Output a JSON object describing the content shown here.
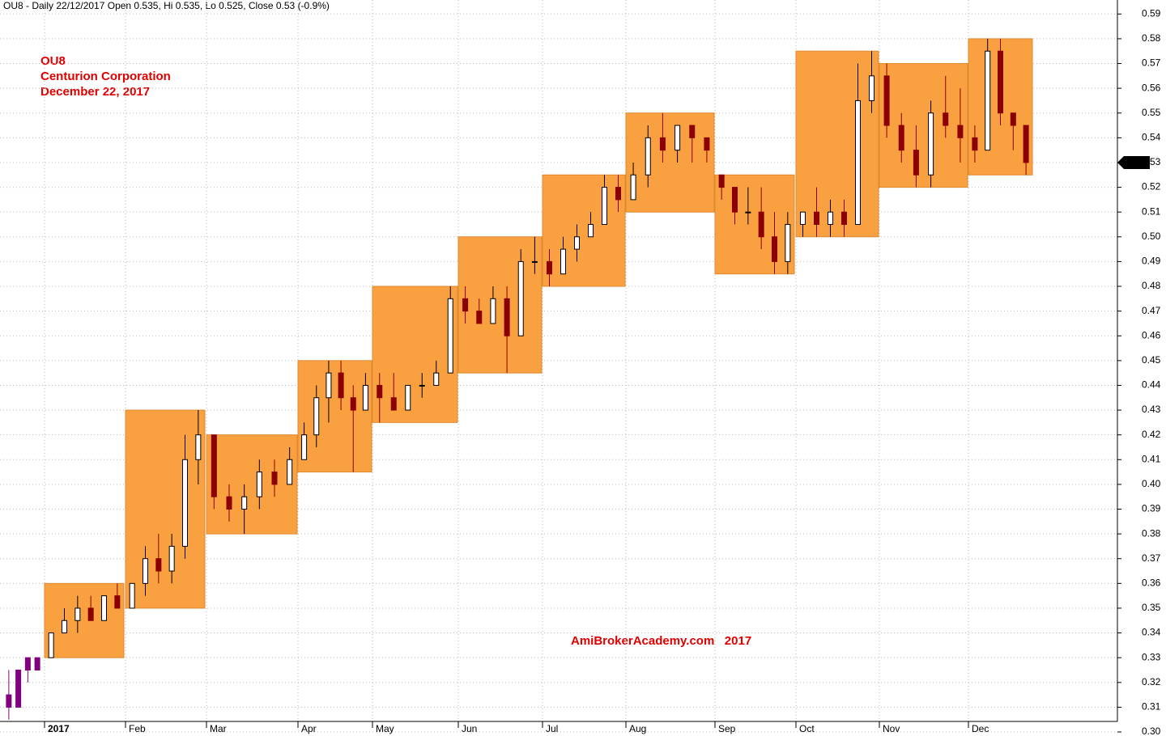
{
  "chart_data": {
    "type": "candlestick",
    "title": "OU8 - Daily 22/12/2017 Open 0.535, Hi 0.535, Lo 0.525, Close 0.53 (-0.9%)",
    "annotations": [
      "OU8",
      "Centurion Corporation",
      "December 22, 2017"
    ],
    "watermark": "AmiBrokerAcademy.com   2017",
    "ylim": [
      0.3,
      0.595
    ],
    "yticks": [
      {
        "value": 0.3,
        "label": "0.30"
      },
      {
        "value": 0.31,
        "label": "0.31"
      },
      {
        "value": 0.32,
        "label": "0.32"
      },
      {
        "value": 0.33,
        "label": "0.33"
      },
      {
        "value": 0.34,
        "label": "0.34"
      },
      {
        "value": 0.35,
        "label": "0.35"
      },
      {
        "value": 0.36,
        "label": "0.36"
      },
      {
        "value": 0.37,
        "label": "0.37"
      },
      {
        "value": 0.38,
        "label": "0.38"
      },
      {
        "value": 0.39,
        "label": "0.39"
      },
      {
        "value": 0.4,
        "label": "0.40"
      },
      {
        "value": 0.41,
        "label": "0.41"
      },
      {
        "value": 0.42,
        "label": "0.42"
      },
      {
        "value": 0.43,
        "label": "0.43"
      },
      {
        "value": 0.44,
        "label": "0.44"
      },
      {
        "value": 0.45,
        "label": "0.45"
      },
      {
        "value": 0.46,
        "label": "0.46"
      },
      {
        "value": 0.47,
        "label": "0.47"
      },
      {
        "value": 0.48,
        "label": "0.48"
      },
      {
        "value": 0.49,
        "label": "0.49"
      },
      {
        "value": 0.5,
        "label": "0.50"
      },
      {
        "value": 0.51,
        "label": "0.51"
      },
      {
        "value": 0.52,
        "label": "0.52"
      },
      {
        "value": 0.53,
        "label": "0.53"
      },
      {
        "value": 0.54,
        "label": "0.54"
      },
      {
        "value": 0.55,
        "label": "0.55"
      },
      {
        "value": 0.56,
        "label": "0.56"
      },
      {
        "value": 0.57,
        "label": "0.57"
      },
      {
        "value": 0.58,
        "label": "0.58"
      },
      {
        "value": 0.59,
        "label": "0.59"
      }
    ],
    "last": {
      "value": 0.53,
      "label": "0.53"
    },
    "box_color": "#f9a040",
    "up_color": "#ffffff",
    "down_color": "#8b0000",
    "pre_color": "#800080",
    "months": [
      {
        "label": null,
        "candles": [
          [
            0.315,
            0.325,
            0.305,
            0.31
          ],
          [
            0.31,
            0.325,
            0.31,
            0.325
          ],
          [
            0.325,
            0.33,
            0.32,
            0.33
          ],
          [
            0.33,
            0.33,
            0.325,
            0.325
          ]
        ]
      },
      {
        "label": "2017",
        "low": 0.33,
        "high": 0.36,
        "candles": [
          [
            0.33,
            0.34,
            0.33,
            0.34
          ],
          [
            0.34,
            0.35,
            0.34,
            0.345
          ],
          [
            0.345,
            0.355,
            0.34,
            0.35
          ],
          [
            0.35,
            0.355,
            0.345,
            0.345
          ],
          [
            0.345,
            0.355,
            0.345,
            0.355
          ],
          [
            0.355,
            0.36,
            0.35,
            0.35
          ]
        ]
      },
      {
        "label": "Feb",
        "low": 0.35,
        "high": 0.43,
        "candles": [
          [
            0.35,
            0.36,
            0.35,
            0.36
          ],
          [
            0.36,
            0.375,
            0.355,
            0.37
          ],
          [
            0.37,
            0.38,
            0.36,
            0.365
          ],
          [
            0.365,
            0.38,
            0.36,
            0.375
          ],
          [
            0.375,
            0.42,
            0.37,
            0.41
          ],
          [
            0.41,
            0.43,
            0.4,
            0.42
          ]
        ]
      },
      {
        "label": "Mar",
        "low": 0.38,
        "high": 0.42,
        "candles": [
          [
            0.42,
            0.42,
            0.39,
            0.395
          ],
          [
            0.395,
            0.4,
            0.385,
            0.39
          ],
          [
            0.39,
            0.4,
            0.38,
            0.395
          ],
          [
            0.395,
            0.41,
            0.39,
            0.405
          ],
          [
            0.405,
            0.41,
            0.395,
            0.4
          ],
          [
            0.4,
            0.415,
            0.4,
            0.41
          ]
        ]
      },
      {
        "label": "Apr",
        "low": 0.405,
        "high": 0.45,
        "candles": [
          [
            0.41,
            0.425,
            0.41,
            0.42
          ],
          [
            0.42,
            0.44,
            0.415,
            0.435
          ],
          [
            0.435,
            0.45,
            0.425,
            0.445
          ],
          [
            0.445,
            0.45,
            0.43,
            0.435
          ],
          [
            0.435,
            0.44,
            0.405,
            0.43
          ],
          [
            0.43,
            0.445,
            0.43,
            0.44
          ]
        ]
      },
      {
        "label": "May",
        "low": 0.425,
        "high": 0.48,
        "candles": [
          [
            0.44,
            0.445,
            0.425,
            0.435
          ],
          [
            0.435,
            0.445,
            0.43,
            0.43
          ],
          [
            0.43,
            0.44,
            0.43,
            0.44
          ],
          [
            0.44,
            0.445,
            0.435,
            0.44
          ],
          [
            0.44,
            0.45,
            0.44,
            0.445
          ],
          [
            0.445,
            0.48,
            0.445,
            0.475
          ]
        ]
      },
      {
        "label": "Jun",
        "low": 0.445,
        "high": 0.5,
        "candles": [
          [
            0.475,
            0.48,
            0.465,
            0.47
          ],
          [
            0.47,
            0.475,
            0.465,
            0.465
          ],
          [
            0.465,
            0.48,
            0.465,
            0.475
          ],
          [
            0.475,
            0.48,
            0.445,
            0.46
          ],
          [
            0.46,
            0.495,
            0.46,
            0.49
          ],
          [
            0.49,
            0.5,
            0.485,
            0.49
          ]
        ]
      },
      {
        "label": "Jul",
        "low": 0.48,
        "high": 0.525,
        "candles": [
          [
            0.49,
            0.495,
            0.48,
            0.485
          ],
          [
            0.485,
            0.5,
            0.485,
            0.495
          ],
          [
            0.495,
            0.505,
            0.49,
            0.5
          ],
          [
            0.5,
            0.51,
            0.5,
            0.505
          ],
          [
            0.505,
            0.525,
            0.505,
            0.52
          ],
          [
            0.52,
            0.525,
            0.51,
            0.515
          ]
        ]
      },
      {
        "label": "Aug",
        "low": 0.51,
        "high": 0.55,
        "candles": [
          [
            0.515,
            0.53,
            0.515,
            0.525
          ],
          [
            0.525,
            0.545,
            0.52,
            0.54
          ],
          [
            0.54,
            0.55,
            0.53,
            0.535
          ],
          [
            0.535,
            0.545,
            0.53,
            0.545
          ],
          [
            0.545,
            0.545,
            0.53,
            0.54
          ],
          [
            0.54,
            0.54,
            0.53,
            0.535
          ]
        ]
      },
      {
        "label": "Sep",
        "low": 0.485,
        "high": 0.525,
        "candles": [
          [
            0.525,
            0.525,
            0.515,
            0.52
          ],
          [
            0.52,
            0.52,
            0.505,
            0.51
          ],
          [
            0.51,
            0.52,
            0.505,
            0.51
          ],
          [
            0.51,
            0.52,
            0.495,
            0.5
          ],
          [
            0.5,
            0.51,
            0.485,
            0.49
          ],
          [
            0.49,
            0.51,
            0.485,
            0.505
          ]
        ]
      },
      {
        "label": "Oct",
        "low": 0.5,
        "high": 0.575,
        "candles": [
          [
            0.505,
            0.51,
            0.5,
            0.51
          ],
          [
            0.51,
            0.52,
            0.5,
            0.505
          ],
          [
            0.505,
            0.515,
            0.5,
            0.51
          ],
          [
            0.51,
            0.515,
            0.5,
            0.505
          ],
          [
            0.505,
            0.57,
            0.505,
            0.555
          ],
          [
            0.555,
            0.575,
            0.55,
            0.565
          ]
        ]
      },
      {
        "label": "Nov",
        "low": 0.52,
        "high": 0.57,
        "candles": [
          [
            0.565,
            0.57,
            0.54,
            0.545
          ],
          [
            0.545,
            0.55,
            0.53,
            0.535
          ],
          [
            0.535,
            0.545,
            0.52,
            0.525
          ],
          [
            0.525,
            0.555,
            0.52,
            0.55
          ],
          [
            0.55,
            0.565,
            0.54,
            0.545
          ],
          [
            0.545,
            0.56,
            0.53,
            0.54
          ]
        ]
      },
      {
        "label": "Dec",
        "low": 0.525,
        "high": 0.58,
        "candles": [
          [
            0.54,
            0.545,
            0.53,
            0.535
          ],
          [
            0.535,
            0.58,
            0.535,
            0.575
          ],
          [
            0.575,
            0.58,
            0.545,
            0.55
          ],
          [
            0.55,
            0.55,
            0.535,
            0.545
          ],
          [
            0.545,
            0.545,
            0.525,
            0.53
          ]
        ]
      }
    ]
  }
}
